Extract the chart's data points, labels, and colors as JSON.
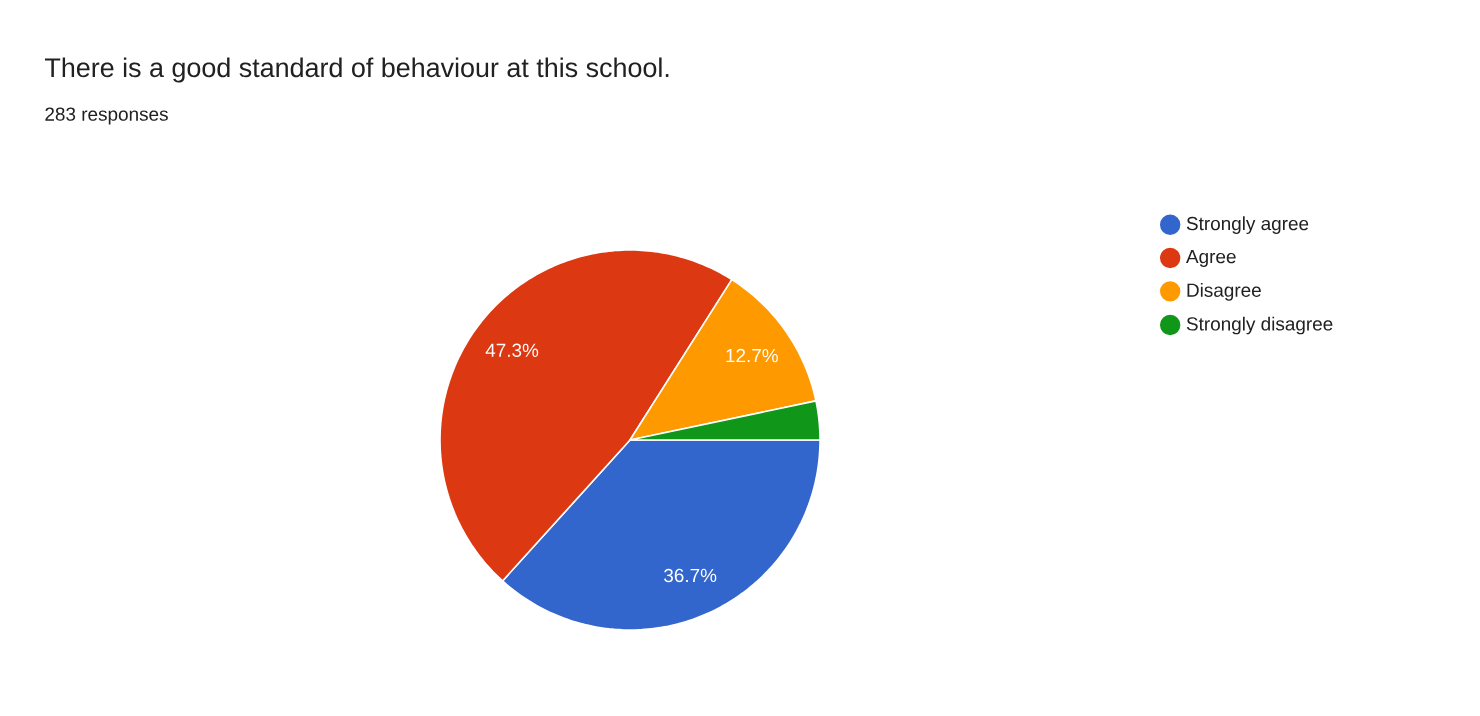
{
  "chart_data": {
    "type": "pie",
    "title": "There is a good standard of behaviour at this school.",
    "subtitle": "283 responses",
    "categories": [
      "Strongly agree",
      "Agree",
      "Disagree",
      "Strongly disagree"
    ],
    "values": [
      36.7,
      47.3,
      12.7,
      3.3
    ],
    "colors": [
      "#3366cc",
      "#dc3912",
      "#ff9900",
      "#109618"
    ],
    "value_labels": [
      "36.7%",
      "47.3%",
      "12.7%",
      null
    ],
    "legend": "right"
  }
}
